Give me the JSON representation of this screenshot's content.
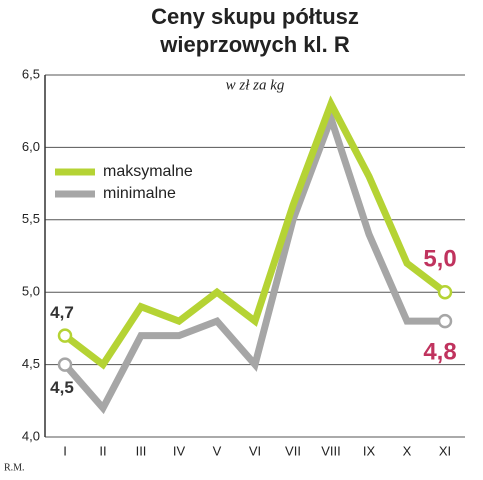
{
  "chart_data": {
    "type": "line",
    "title": [
      "Ceny skupu półtusz",
      "wieprzowych kl. R"
    ],
    "subtitle": "w zł za kg",
    "credit": "R.M.",
    "categories": [
      "I",
      "II",
      "III",
      "IV",
      "V",
      "VI",
      "VII",
      "VIII",
      "IX",
      "X",
      "XI"
    ],
    "series": [
      {
        "name": "maksymalne",
        "color": "#b5d334",
        "values": [
          4.7,
          4.5,
          4.9,
          4.8,
          5.0,
          4.8,
          5.6,
          6.3,
          5.8,
          5.2,
          5.0
        ],
        "value_labels": [
          "4,7",
          null,
          null,
          null,
          null,
          null,
          null,
          null,
          null,
          null,
          "5,0"
        ]
      },
      {
        "name": "minimalne",
        "color": "#a6a6a6",
        "values": [
          4.5,
          4.2,
          4.7,
          4.7,
          4.8,
          4.5,
          5.5,
          6.2,
          5.4,
          4.8,
          4.8
        ],
        "value_labels": [
          "4,5",
          null,
          null,
          null,
          null,
          null,
          null,
          null,
          null,
          null,
          "4,8"
        ]
      }
    ],
    "ylim": [
      4.0,
      6.5
    ],
    "yticks": [
      {
        "value": 4.0,
        "label": "4,0"
      },
      {
        "value": 4.5,
        "label": "4,5"
      },
      {
        "value": 5.0,
        "label": "5,0"
      },
      {
        "value": 5.5,
        "label": "5,5"
      },
      {
        "value": 6.0,
        "label": "6,0"
      },
      {
        "value": 6.5,
        "label": "6,5"
      }
    ],
    "grid": true,
    "legend": "upper left"
  }
}
